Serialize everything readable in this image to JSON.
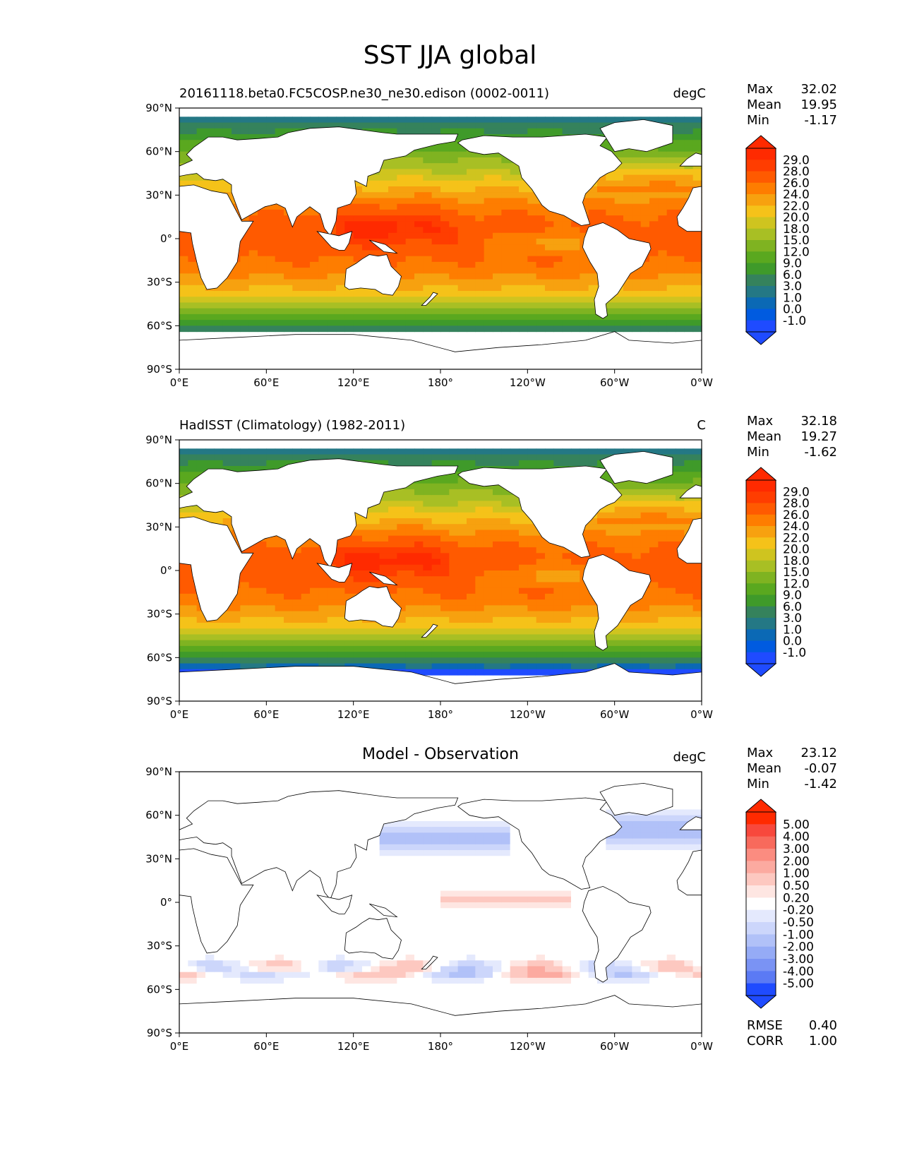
{
  "figure_title": "SST JJA global",
  "axes": {
    "lat_ticks": [
      "90°N",
      "60°N",
      "30°N",
      "0°",
      "30°S",
      "60°S",
      "90°S"
    ],
    "lon_ticks": [
      "0°E",
      "60°E",
      "120°E",
      "180°",
      "120°W",
      "60°W",
      "0°W"
    ]
  },
  "panels": [
    {
      "title_left": "20161118.beta0.FC5COSP.ne30_ne30.edison (0002-0011)",
      "title_center": "",
      "units": "degC",
      "stats": [
        {
          "label": "Max",
          "value": "32.02"
        },
        {
          "label": "Mean",
          "value": "19.95"
        },
        {
          "label": "Min",
          "value": "-1.17"
        }
      ],
      "colorbar": {
        "labels": [
          "29.0",
          "28.0",
          "26.0",
          "24.0",
          "22.0",
          "20.0",
          "18.0",
          "15.0",
          "12.0",
          "9.0",
          "6.0",
          "3.0",
          "1.0",
          "0.0",
          "-1.0"
        ],
        "colors": [
          "#ff2a00",
          "#ff3d00",
          "#ff5a00",
          "#fe7d00",
          "#f7a10f",
          "#f5c219",
          "#cfc41f",
          "#a8bf24",
          "#7fb321",
          "#5aa81f",
          "#3f9a2a",
          "#35825c",
          "#247885",
          "#0b69b5",
          "#005be0",
          "#1f4bff"
        ]
      },
      "extra_stats": []
    },
    {
      "title_left": "HadISST (Climatology) (1982-2011)",
      "title_center": "",
      "units": "C",
      "stats": [
        {
          "label": "Max",
          "value": "32.18"
        },
        {
          "label": "Mean",
          "value": "19.27"
        },
        {
          "label": "Min",
          "value": "-1.62"
        }
      ],
      "colorbar": {
        "labels": [
          "29.0",
          "28.0",
          "26.0",
          "24.0",
          "22.0",
          "20.0",
          "18.0",
          "15.0",
          "12.0",
          "9.0",
          "6.0",
          "3.0",
          "1.0",
          "0.0",
          "-1.0"
        ],
        "colors": [
          "#ff2a00",
          "#ff3d00",
          "#ff5a00",
          "#fe7d00",
          "#f7a10f",
          "#f5c219",
          "#cfc41f",
          "#a8bf24",
          "#7fb321",
          "#5aa81f",
          "#3f9a2a",
          "#35825c",
          "#247885",
          "#0b69b5",
          "#005be0",
          "#1f4bff"
        ]
      },
      "extra_stats": []
    },
    {
      "title_left": "",
      "title_center": "Model - Observation",
      "units": "degC",
      "stats": [
        {
          "label": "Max",
          "value": "23.12"
        },
        {
          "label": "Mean",
          "value": "-0.07"
        },
        {
          "label": "Min",
          "value": "-1.42"
        }
      ],
      "colorbar": {
        "labels": [
          "5.00",
          "4.00",
          "3.00",
          "2.00",
          "1.00",
          "0.50",
          "0.20",
          "-0.20",
          "-0.50",
          "-1.00",
          "-2.00",
          "-3.00",
          "-4.00",
          "-5.00"
        ],
        "colors": [
          "#ff2a00",
          "#f8483c",
          "#f86a5c",
          "#fb8c80",
          "#fcaaa0",
          "#fdc8c0",
          "#fee6e2",
          "#ffffff",
          "#e4e9fd",
          "#ccd6fb",
          "#b1c1f8",
          "#95abf6",
          "#7a93f4",
          "#5b7af4",
          "#1f4bff"
        ]
      },
      "extra_stats": [
        {
          "label": "RMSE",
          "value": "0.40"
        },
        {
          "label": "CORR",
          "value": "1.00"
        }
      ]
    }
  ]
}
